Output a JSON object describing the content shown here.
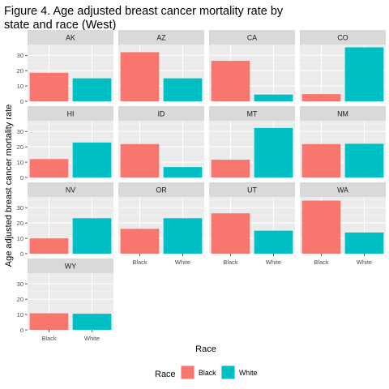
{
  "chart_data": {
    "type": "bar",
    "title": "Figure 4. Age adjusted breast cancer mortality rate by state and race (West)",
    "title_lines": [
      "Figure 4. Age adjusted breast cancer mortality rate by",
      "state and race (West)"
    ],
    "xlabel": "Race",
    "ylabel": "Age adjusted breast cancer mortality rate",
    "categories": [
      "Black",
      "White"
    ],
    "ylim": [
      0,
      37
    ],
    "yticks": [
      0,
      10,
      20,
      30
    ],
    "legend": {
      "title": "Race",
      "position": "bottom",
      "entries": [
        {
          "label": "Black",
          "color": "#F8766D"
        },
        {
          "label": "White",
          "color": "#00BFC4"
        }
      ]
    },
    "colors": {
      "Black": "#F8766D",
      "White": "#00BFC4"
    },
    "grid": true,
    "facets": [
      {
        "state": "AK",
        "values": [
          18.6,
          15.0
        ]
      },
      {
        "state": "AZ",
        "values": [
          32.0,
          15.0
        ]
      },
      {
        "state": "CA",
        "values": [
          26.4,
          4.4
        ]
      },
      {
        "state": "CO",
        "values": [
          4.7,
          35.2
        ]
      },
      {
        "state": "HI",
        "values": [
          12.0,
          22.8
        ]
      },
      {
        "state": "ID",
        "values": [
          21.8,
          6.8
        ]
      },
      {
        "state": "MT",
        "values": [
          11.6,
          32.3
        ]
      },
      {
        "state": "NM",
        "values": [
          21.8,
          22.0
        ]
      },
      {
        "state": "NV",
        "values": [
          10.0,
          23.1
        ]
      },
      {
        "state": "OR",
        "values": [
          16.2,
          23.1
        ]
      },
      {
        "state": "UT",
        "values": [
          26.3,
          15.0
        ]
      },
      {
        "state": "WA",
        "values": [
          34.6,
          13.8
        ]
      },
      {
        "state": "WY",
        "values": [
          10.8,
          10.5
        ]
      }
    ]
  }
}
